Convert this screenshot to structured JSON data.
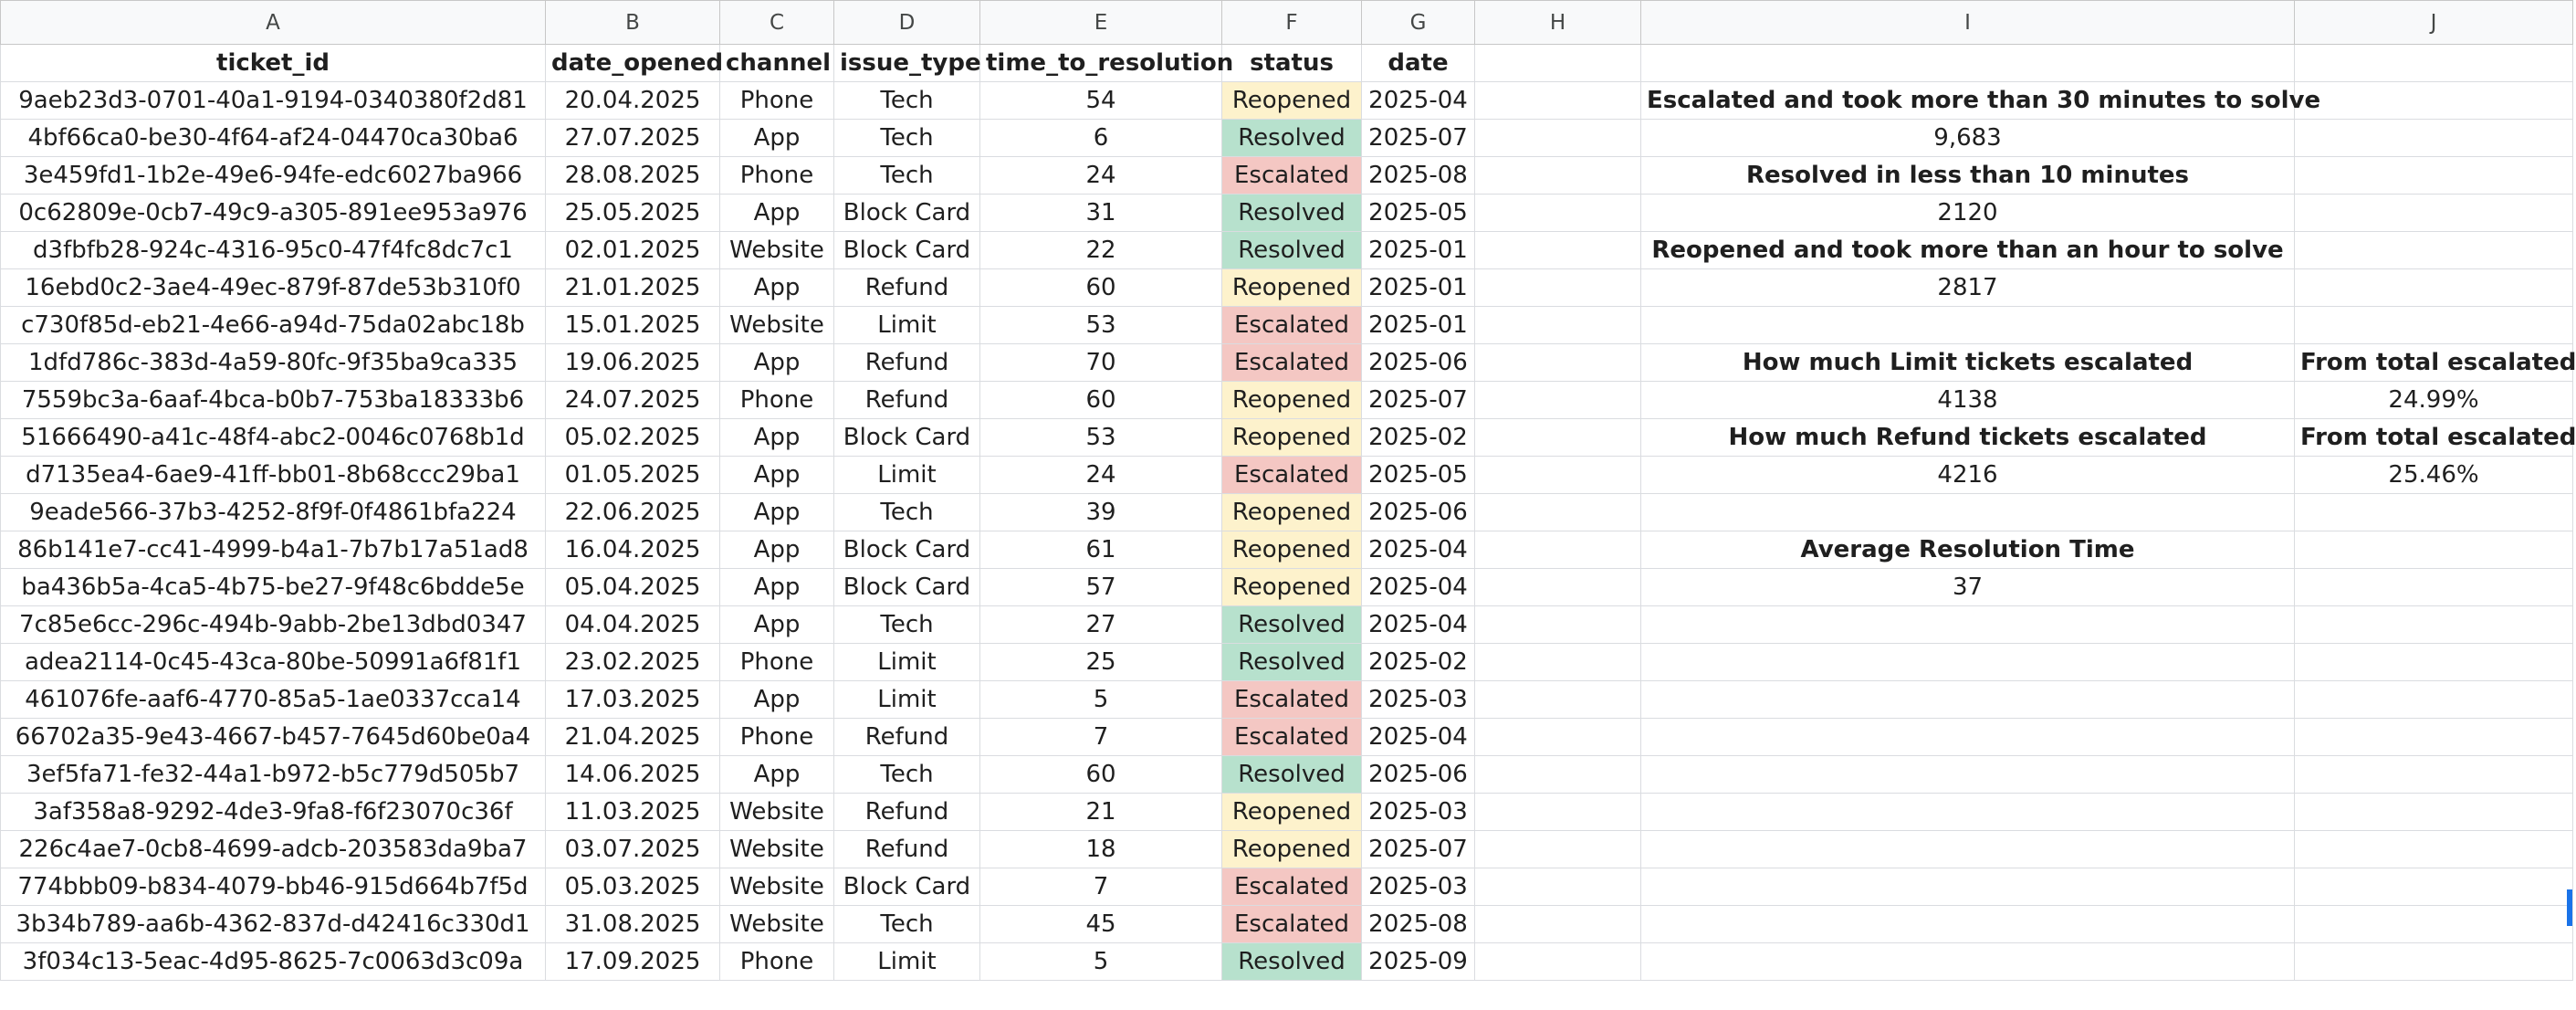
{
  "column_letters": [
    "A",
    "B",
    "C",
    "D",
    "E",
    "F",
    "G",
    "H",
    "I",
    "J"
  ],
  "headers": [
    "ticket_id",
    "date_opened",
    "channel",
    "issue_type",
    "time_to_resolution",
    "status",
    "date"
  ],
  "rows": [
    [
      "9aeb23d3-0701-40a1-9194-0340380f2d81",
      "20.04.2025",
      "Phone",
      "Tech",
      "54",
      "Reopened",
      "2025-04"
    ],
    [
      "4bf66ca0-be30-4f64-af24-04470ca30ba6",
      "27.07.2025",
      "App",
      "Tech",
      "6",
      "Resolved",
      "2025-07"
    ],
    [
      "3e459fd1-1b2e-49e6-94fe-edc6027ba966",
      "28.08.2025",
      "Phone",
      "Tech",
      "24",
      "Escalated",
      "2025-08"
    ],
    [
      "0c62809e-0cb7-49c9-a305-891ee953a976",
      "25.05.2025",
      "App",
      "Block Card",
      "31",
      "Resolved",
      "2025-05"
    ],
    [
      "d3fbfb28-924c-4316-95c0-47f4fc8dc7c1",
      "02.01.2025",
      "Website",
      "Block Card",
      "22",
      "Resolved",
      "2025-01"
    ],
    [
      "16ebd0c2-3ae4-49ec-879f-87de53b310f0",
      "21.01.2025",
      "App",
      "Refund",
      "60",
      "Reopened",
      "2025-01"
    ],
    [
      "c730f85d-eb21-4e66-a94d-75da02abc18b",
      "15.01.2025",
      "Website",
      "Limit",
      "53",
      "Escalated",
      "2025-01"
    ],
    [
      "1dfd786c-383d-4a59-80fc-9f35ba9ca335",
      "19.06.2025",
      "App",
      "Refund",
      "70",
      "Escalated",
      "2025-06"
    ],
    [
      "7559bc3a-6aaf-4bca-b0b7-753ba18333b6",
      "24.07.2025",
      "Phone",
      "Refund",
      "60",
      "Reopened",
      "2025-07"
    ],
    [
      "51666490-a41c-48f4-abc2-0046c0768b1d",
      "05.02.2025",
      "App",
      "Block Card",
      "53",
      "Reopened",
      "2025-02"
    ],
    [
      "d7135ea4-6ae9-41ff-bb01-8b68ccc29ba1",
      "01.05.2025",
      "App",
      "Limit",
      "24",
      "Escalated",
      "2025-05"
    ],
    [
      "9eade566-37b3-4252-8f9f-0f4861bfa224",
      "22.06.2025",
      "App",
      "Tech",
      "39",
      "Reopened",
      "2025-06"
    ],
    [
      "86b141e7-cc41-4999-b4a1-7b7b17a51ad8",
      "16.04.2025",
      "App",
      "Block Card",
      "61",
      "Reopened",
      "2025-04"
    ],
    [
      "ba436b5a-4ca5-4b75-be27-9f48c6bdde5e",
      "05.04.2025",
      "App",
      "Block Card",
      "57",
      "Reopened",
      "2025-04"
    ],
    [
      "7c85e6cc-296c-494b-9abb-2be13dbd0347",
      "04.04.2025",
      "App",
      "Tech",
      "27",
      "Resolved",
      "2025-04"
    ],
    [
      "adea2114-0c45-43ca-80be-50991a6f81f1",
      "23.02.2025",
      "Phone",
      "Limit",
      "25",
      "Resolved",
      "2025-02"
    ],
    [
      "461076fe-aaf6-4770-85a5-1ae0337cca14",
      "17.03.2025",
      "App",
      "Limit",
      "5",
      "Escalated",
      "2025-03"
    ],
    [
      "66702a35-9e43-4667-b457-7645d60be0a4",
      "21.04.2025",
      "Phone",
      "Refund",
      "7",
      "Escalated",
      "2025-04"
    ],
    [
      "3ef5fa71-fe32-44a1-b972-b5c779d505b7",
      "14.06.2025",
      "App",
      "Tech",
      "60",
      "Resolved",
      "2025-06"
    ],
    [
      "3af358a8-9292-4de3-9fa8-f6f23070c36f",
      "11.03.2025",
      "Website",
      "Refund",
      "21",
      "Reopened",
      "2025-03"
    ],
    [
      "226c4ae7-0cb8-4699-adcb-203583da9ba7",
      "03.07.2025",
      "Website",
      "Refund",
      "18",
      "Reopened",
      "2025-07"
    ],
    [
      "774bbb09-b834-4079-bb46-915d664b7f5d",
      "05.03.2025",
      "Website",
      "Block Card",
      "7",
      "Escalated",
      "2025-03"
    ],
    [
      "3b34b789-aa6b-4362-837d-d42416c330d1",
      "31.08.2025",
      "Website",
      "Tech",
      "45",
      "Escalated",
      "2025-08"
    ],
    [
      "3f034c13-5eac-4d95-8625-7c0063d3c09a",
      "17.09.2025",
      "Phone",
      "Limit",
      "5",
      "Resolved",
      "2025-09"
    ]
  ],
  "summary": [
    {
      "I": "",
      "J": ""
    },
    {
      "I": "Escalated and took more than 30 minutes to solve",
      "J": "",
      "bold": true
    },
    {
      "I": "9,683",
      "J": ""
    },
    {
      "I": "Resolved in less than 10 minutes",
      "J": "",
      "bold": true
    },
    {
      "I": "2120",
      "J": ""
    },
    {
      "I": "Reopened and took more than an hour to solve",
      "J": "",
      "bold": true
    },
    {
      "I": "2817",
      "J": ""
    },
    {
      "I": "",
      "J": ""
    },
    {
      "I": "How much Limit tickets escalated",
      "J": "From total escalated",
      "bold": true
    },
    {
      "I": "4138",
      "J": "24.99%"
    },
    {
      "I": "How much Refund tickets escalated",
      "J": "From total escalated",
      "bold": true
    },
    {
      "I": "4216",
      "J": "25.46%"
    },
    {
      "I": "",
      "J": ""
    },
    {
      "I": "Average Resolution Time",
      "J": "",
      "bold": true
    },
    {
      "I": "37",
      "J": ""
    },
    {
      "I": "",
      "J": ""
    },
    {
      "I": "",
      "J": ""
    },
    {
      "I": "",
      "J": ""
    },
    {
      "I": "",
      "J": ""
    },
    {
      "I": "",
      "J": ""
    },
    {
      "I": "",
      "J": ""
    },
    {
      "I": "",
      "J": ""
    },
    {
      "I": "",
      "J": ""
    },
    {
      "I": "",
      "J": ""
    },
    {
      "I": "",
      "J": ""
    }
  ],
  "status_colors": {
    "Reopened": "#fdf2cc",
    "Resolved": "#b7e1cd",
    "Escalated": "#f4c7c3"
  }
}
